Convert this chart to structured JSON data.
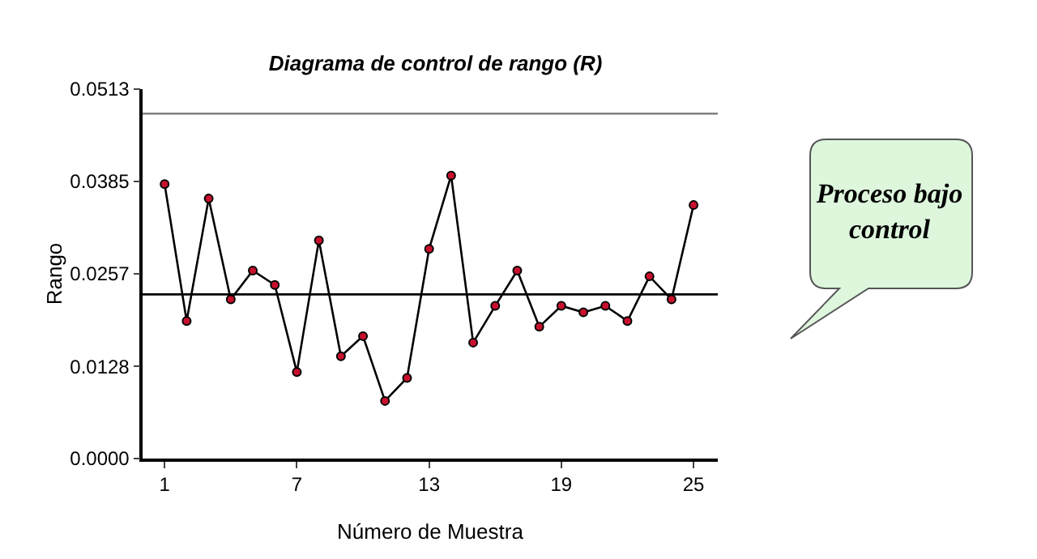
{
  "chart_data": {
    "type": "line",
    "title": "Diagrama de control de rango (R)",
    "xlabel": "Número de Muestra",
    "ylabel": "Rango",
    "x": [
      1,
      2,
      3,
      4,
      5,
      6,
      7,
      8,
      9,
      10,
      11,
      12,
      13,
      14,
      15,
      16,
      17,
      18,
      19,
      20,
      21,
      22,
      23,
      24,
      25
    ],
    "series": [
      {
        "color": "#000000",
        "values": [
          0.0381,
          0.0191,
          0.0361,
          0.0221,
          0.0261,
          0.0241,
          0.012,
          0.0303,
          0.0142,
          0.017,
          0.008,
          0.0112,
          0.0291,
          0.0393,
          0.0161,
          0.0212,
          0.0261,
          0.0183,
          0.0212,
          0.0203,
          0.0212,
          0.0191,
          0.0253,
          0.0221,
          0.0352
        ]
      }
    ],
    "xlim": [
      0,
      26.1
    ],
    "xticks": [
      1,
      7,
      13,
      19,
      25
    ],
    "ylim": [
      0,
      0.0513
    ],
    "yticks": [
      {
        "value": 0,
        "label": "0.0000"
      },
      {
        "value": 0.0128,
        "label": "0.0128"
      },
      {
        "value": 0.0257,
        "label": "0.0257"
      },
      {
        "value": 0.0385,
        "label": "0.0385"
      },
      {
        "value": 0.0513,
        "label": "0.0513"
      }
    ],
    "ref_lines": [
      {
        "axis": "y",
        "value": 0.0479,
        "color": "#808080"
      },
      {
        "axis": "y",
        "value": 0.0228,
        "color": "#000000"
      }
    ],
    "annotations": [
      "Proceso bajo control"
    ],
    "marker": "circle",
    "grid": false
  }
}
